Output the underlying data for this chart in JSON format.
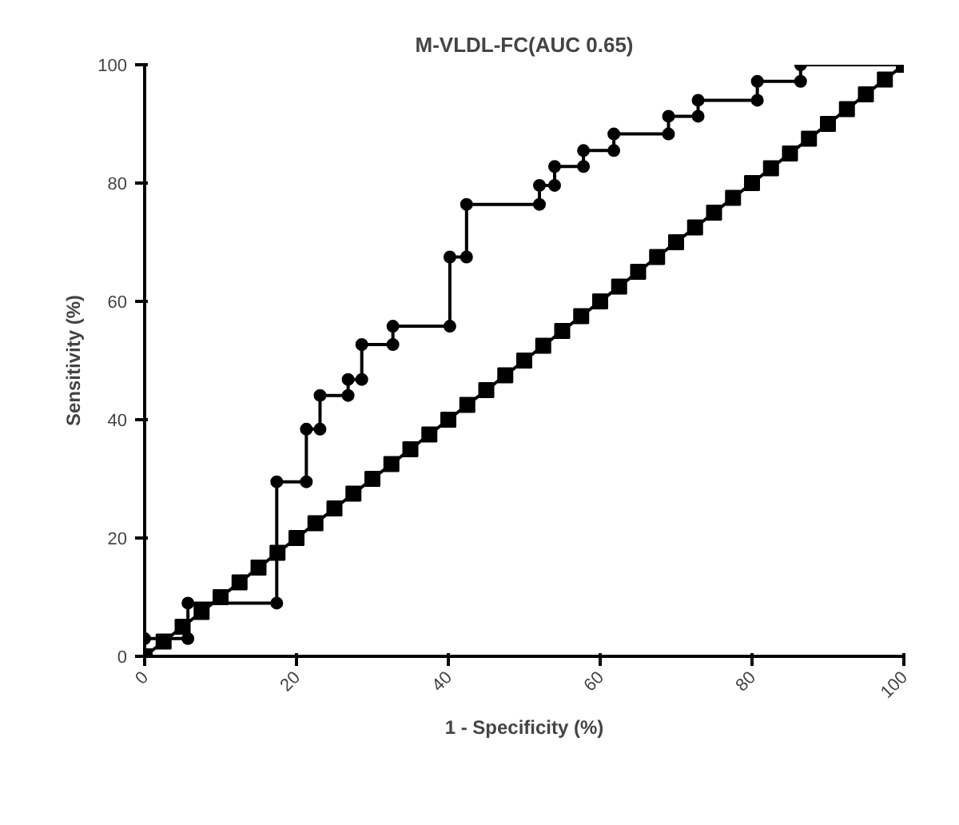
{
  "chart_data": {
    "type": "line",
    "title": "M-VLDL-FC(AUC 0.65)",
    "xlabel": "1 - Specificity (%)",
    "ylabel": "Sensitivity (%)",
    "xlim": [
      0,
      100
    ],
    "ylim": [
      0,
      100
    ],
    "xticks": [
      0,
      20,
      40,
      60,
      80,
      100
    ],
    "yticks": [
      0,
      20,
      40,
      60,
      80,
      100
    ],
    "grid": false,
    "series": [
      {
        "color": "#000000",
        "marker": "circle",
        "x": [
          0,
          5.7,
          5.7,
          17.4,
          17.4,
          21.3,
          21.3,
          23.1,
          23.1,
          26.8,
          26.8,
          28.6,
          28.6,
          32.7,
          32.7,
          40.2,
          40.2,
          42.4,
          42.4,
          52,
          52,
          54,
          54,
          57.8,
          57.8,
          61.8,
          61.8,
          69,
          69,
          72.9,
          72.9,
          80.7,
          80.7,
          86.4,
          86.4,
          100
        ],
        "values": [
          3,
          3,
          9,
          9,
          29.5,
          29.5,
          38.4,
          38.4,
          44.1,
          44.1,
          46.8,
          46.8,
          52.7,
          52.7,
          55.8,
          55.8,
          67.5,
          67.5,
          76.4,
          76.4,
          79.6,
          79.6,
          82.8,
          82.8,
          85.5,
          85.5,
          88.3,
          88.3,
          91.3,
          91.3,
          94,
          94,
          97.2,
          97.2,
          100,
          100
        ]
      },
      {
        "color": "#000000",
        "marker": "square",
        "x": [
          0,
          2.5,
          5,
          7.5,
          10,
          12.5,
          15,
          17.5,
          20,
          22.5,
          25,
          27.5,
          30,
          32.5,
          35,
          37.5,
          40,
          42.5,
          45,
          47.5,
          50,
          52.5,
          55,
          57.5,
          60,
          62.5,
          65,
          67.5,
          70,
          72.5,
          75,
          77.5,
          80,
          82.5,
          85,
          87.5,
          90,
          92.5,
          95,
          97.5,
          100
        ],
        "values": [
          0,
          2.5,
          5,
          7.5,
          10,
          12.5,
          15,
          17.5,
          20,
          22.5,
          25,
          27.5,
          30,
          32.5,
          35,
          37.5,
          40,
          42.5,
          45,
          47.5,
          50,
          52.5,
          55,
          57.5,
          60,
          62.5,
          65,
          67.5,
          70,
          72.5,
          75,
          77.5,
          80,
          82.5,
          85,
          87.5,
          90,
          92.5,
          95,
          97.5,
          100
        ]
      }
    ]
  }
}
